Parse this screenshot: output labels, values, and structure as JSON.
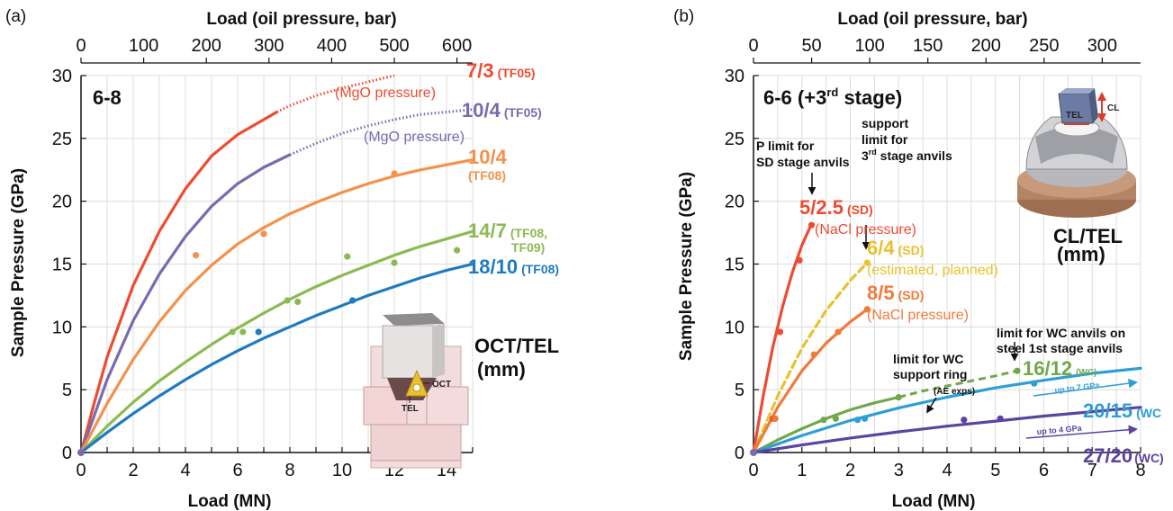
{
  "chart_data": [
    {
      "panel_label": "(a)",
      "type": "line",
      "annotation": "6-8",
      "xlabel": "Load (MN)",
      "x2label": "Load (oil pressure, bar)",
      "ylabel": "Sample Pressure (GPa)",
      "xlim": [
        0,
        15
      ],
      "ylim": [
        0,
        30
      ],
      "x2lim": [
        0,
        625
      ],
      "xticks": [
        0,
        2,
        4,
        6,
        8,
        10,
        12,
        14
      ],
      "x2ticks": [
        0,
        100,
        200,
        300,
        400,
        500,
        600
      ],
      "yticks": [
        0,
        5,
        10,
        15,
        20,
        25,
        30
      ],
      "grid": true,
      "series": [
        {
          "name": "7/3",
          "tag": "(TF05)",
          "note": "(MgO pressure)",
          "color": "#ef4a32",
          "x": [
            0,
            0.5,
            1,
            2,
            3,
            4,
            5,
            6,
            7,
            7.5
          ],
          "y": [
            0,
            3.9,
            7.6,
            13.3,
            17.6,
            21.0,
            23.6,
            25.3,
            26.5,
            27.1
          ],
          "dotted_x": [
            7.5,
            8,
            9,
            10,
            11,
            12
          ],
          "dotted_y": [
            27.1,
            27.6,
            28.4,
            29.0,
            29.5,
            30.0
          ]
        },
        {
          "name": "10/4",
          "tag": "(TF05)",
          "note": "(MgO pressure)",
          "color": "#7a6ab0",
          "x": [
            0,
            1,
            2,
            3,
            4,
            5,
            6,
            7,
            8
          ],
          "y": [
            0,
            5.8,
            10.5,
            14.2,
            17.2,
            19.6,
            21.4,
            22.7,
            23.7
          ],
          "dotted_x": [
            8,
            9,
            10,
            11,
            12,
            13,
            14,
            15
          ],
          "dotted_y": [
            23.7,
            24.6,
            25.4,
            26.0,
            26.5,
            26.9,
            27.1,
            27.3
          ]
        },
        {
          "name": "10/4",
          "tag": "(TF08)",
          "color": "#f4914a",
          "x": [
            0,
            1,
            2,
            3,
            4,
            5,
            6,
            7,
            8,
            9,
            10,
            11,
            12,
            13,
            14,
            15
          ],
          "y": [
            0,
            3.9,
            7.4,
            10.4,
            12.9,
            14.9,
            16.6,
            17.9,
            19.0,
            19.9,
            20.7,
            21.4,
            22.0,
            22.5,
            22.9,
            23.3
          ],
          "points_x": [
            4.4,
            7.0,
            12.0
          ],
          "points_y": [
            15.7,
            17.4,
            22.2
          ]
        },
        {
          "name": "14/7",
          "tag": "(TF08,",
          "tag2": "TF09)",
          "color": "#8cba52",
          "x": [
            0,
            1,
            2,
            3,
            4,
            5,
            6,
            7,
            8,
            9,
            10,
            11,
            12,
            13,
            14,
            15
          ],
          "y": [
            0,
            2.1,
            4.0,
            5.7,
            7.2,
            8.6,
            9.9,
            11.1,
            12.2,
            13.2,
            14.1,
            14.9,
            15.7,
            16.4,
            17.0,
            17.6
          ],
          "points_x": [
            5.8,
            6.2,
            7.9,
            8.3,
            10.2,
            12.0,
            14.4
          ],
          "points_y": [
            9.6,
            9.6,
            12.1,
            12.0,
            15.6,
            15.1,
            16.1
          ]
        },
        {
          "name": "18/10",
          "tag": "(TF08)",
          "color": "#1f7bbf",
          "x": [
            0,
            1,
            2,
            3,
            4,
            5,
            6,
            7,
            8,
            9,
            10,
            11,
            12,
            13,
            14,
            15
          ],
          "y": [
            0,
            1.6,
            3.1,
            4.5,
            5.8,
            7.0,
            8.1,
            9.1,
            10.0,
            10.9,
            11.7,
            12.5,
            13.2,
            13.9,
            14.5,
            15.0
          ],
          "points_x": [
            6.8,
            10.4
          ],
          "points_y": [
            9.6,
            12.1
          ]
        }
      ],
      "inset_label_1": "OCT/TEL",
      "inset_label_2": "(mm)",
      "inset_oct": "OCT",
      "inset_tel": "TEL"
    },
    {
      "panel_label": "(b)",
      "type": "line",
      "annotation": "6-6 (+3",
      "annotation_sup": "rd",
      "annotation_end": " stage)",
      "xlabel": "Load (MN)",
      "x2label": "Load (oil pressure, bar)",
      "ylabel": "Sample Pressure (GPa)",
      "xlim": [
        0,
        8
      ],
      "ylim": [
        0,
        30
      ],
      "x2lim": [
        0,
        333
      ],
      "xticks": [
        0,
        1,
        2,
        3,
        4,
        5,
        6,
        7,
        8
      ],
      "x2ticks": [
        0,
        50,
        100,
        150,
        200,
        250,
        300
      ],
      "yticks": [
        0,
        5,
        10,
        15,
        20,
        25,
        30
      ],
      "grid": true,
      "series": [
        {
          "name": "5/2.5",
          "tag": "(SD)",
          "note": "(NaCl pressure)",
          "color": "#ef4a32",
          "x": [
            0,
            0.2,
            0.4,
            0.6,
            0.8,
            1.0,
            1.2
          ],
          "y": [
            0,
            4.5,
            8.4,
            11.6,
            14.3,
            16.5,
            18.2
          ],
          "points_x": [
            0.4,
            0.55,
            0.95,
            1.2
          ],
          "points_y": [
            2.7,
            9.6,
            15.3,
            18.1
          ]
        },
        {
          "name": "6/4",
          "tag": "(SD)",
          "note": "(estimated, planned)",
          "color": "#e9c12c",
          "dashed": true,
          "x": [
            0,
            0.5,
            1.0,
            1.5,
            2.0,
            2.35
          ],
          "y": [
            0,
            4.5,
            8.3,
            11.3,
            13.7,
            15.1
          ],
          "points_x": [
            2.35
          ],
          "points_y": [
            15.1
          ]
        },
        {
          "name": "8/5",
          "tag": "(SD)",
          "note": "(NaCl pressure)",
          "color": "#f07a3a",
          "x": [
            0,
            0.5,
            1.0,
            1.5,
            2.0,
            2.35
          ],
          "y": [
            0,
            3.6,
            6.5,
            8.7,
            10.4,
            11.4
          ],
          "points_x": [
            0.45,
            1.25,
            1.75,
            2.35
          ],
          "points_y": [
            2.7,
            7.8,
            9.6,
            11.4
          ]
        },
        {
          "name": "16/12",
          "tag": "(WC)",
          "color": "#6fa94a",
          "x": [
            0,
            0.5,
            1.0,
            1.5,
            2.0,
            2.5,
            3.0
          ],
          "y": [
            0,
            1.0,
            1.9,
            2.7,
            3.4,
            3.95,
            4.4
          ],
          "dashed_x": [
            3.0,
            3.5,
            4.0,
            4.5,
            5.0,
            5.45
          ],
          "dashed_y": [
            4.4,
            4.9,
            5.3,
            5.7,
            6.1,
            6.5
          ],
          "points_x": [
            1.45,
            1.7,
            3.0,
            5.45
          ],
          "points_y": [
            2.6,
            2.7,
            4.4,
            6.5
          ]
        },
        {
          "name": "20/15",
          "tag": "(WC",
          "arrow_note": "up to 7 GPa",
          "color": "#2e9ed6",
          "x": [
            0,
            1,
            2,
            3,
            4,
            5,
            6,
            7,
            8
          ],
          "y": [
            0,
            1.35,
            2.55,
            3.55,
            4.4,
            5.15,
            5.75,
            6.3,
            6.7
          ],
          "points_x": [
            2.15,
            2.3,
            5.8
          ],
          "points_y": [
            2.6,
            2.7,
            5.5
          ]
        },
        {
          "name": "27/20",
          "tag": "(WC)",
          "arrow_note": "up to 4 GPa",
          "color": "#5a44a0",
          "x": [
            0,
            1,
            2,
            3,
            4,
            5,
            6,
            7,
            8
          ],
          "y": [
            0,
            0.6,
            1.15,
            1.65,
            2.1,
            2.5,
            2.9,
            3.25,
            3.6
          ],
          "points_x": [
            4.35,
            5.1
          ],
          "points_y": [
            2.6,
            2.7
          ]
        }
      ],
      "callouts": {
        "p_limit_1": "P limit for",
        "p_limit_2": "SD stage anvils",
        "support_1": "support",
        "support_2": "limit for",
        "support_3a": "3",
        "support_3sup": "rd",
        "support_3b": " stage anvils",
        "wc_ring_1": "limit for WC",
        "wc_ring_2": "support ring",
        "wc_ring_3": "(AE exps)",
        "wc_steel_1": "limit for WC anvils on",
        "wc_steel_2": "steel 1st stage anvils"
      },
      "inset_label_1": "CL/TEL",
      "inset_label_2": "(mm)",
      "inset_cl": "CL",
      "inset_tel": "TEL"
    }
  ]
}
